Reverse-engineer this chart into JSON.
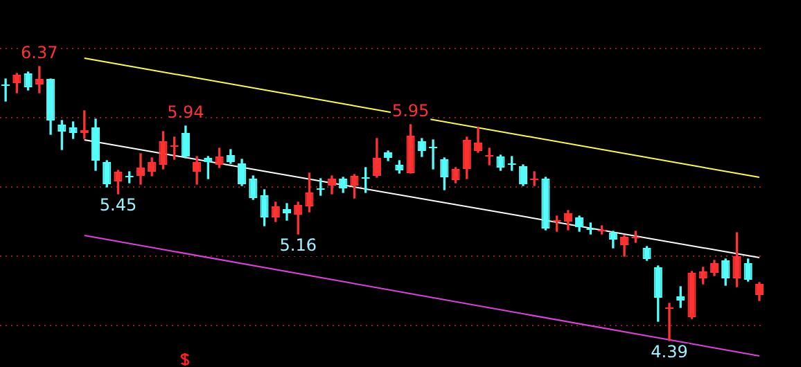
{
  "chart_data": {
    "type": "candlestick",
    "categories": [
      null,
      null,
      null,
      null,
      null,
      null,
      null,
      null,
      null,
      null,
      null,
      null,
      null,
      null,
      null,
      null,
      null,
      null,
      null,
      null,
      null,
      null,
      null,
      null,
      null,
      null,
      null,
      null,
      null,
      null,
      null,
      null,
      null,
      null,
      null,
      null,
      null,
      null,
      null,
      null,
      null,
      null,
      null,
      null,
      null,
      null,
      null,
      null,
      null,
      null,
      null,
      null,
      null,
      null,
      null,
      null,
      null,
      null,
      null,
      null,
      null,
      null,
      null,
      null,
      null,
      null,
      null,
      null
    ],
    "ohlc": [
      [
        6.24,
        6.28,
        6.12,
        6.23
      ],
      [
        6.25,
        6.32,
        6.18,
        6.31
      ],
      [
        6.32,
        6.33,
        6.2,
        6.22
      ],
      [
        6.24,
        6.37,
        6.18,
        6.28
      ],
      [
        6.28,
        6.28,
        5.88,
        5.98
      ],
      [
        5.95,
        5.98,
        5.77,
        5.9
      ],
      [
        5.93,
        5.97,
        5.85,
        5.89
      ],
      [
        5.89,
        6.05,
        5.85,
        5.91
      ],
      [
        5.93,
        5.99,
        5.62,
        5.69
      ],
      [
        5.68,
        5.69,
        5.5,
        5.52
      ],
      [
        5.54,
        5.62,
        5.45,
        5.61
      ],
      [
        5.58,
        5.61,
        5.53,
        5.57
      ],
      [
        5.58,
        5.74,
        5.52,
        5.64
      ],
      [
        5.61,
        5.71,
        5.58,
        5.68
      ],
      [
        5.66,
        5.9,
        5.63,
        5.83
      ],
      [
        5.79,
        5.86,
        5.7,
        5.8
      ],
      [
        5.89,
        5.94,
        5.71,
        5.72
      ],
      [
        5.61,
        5.72,
        5.52,
        5.68
      ],
      [
        5.71,
        5.72,
        5.56,
        5.68
      ],
      [
        5.66,
        5.78,
        5.64,
        5.72
      ],
      [
        5.73,
        5.77,
        5.67,
        5.68
      ],
      [
        5.67,
        5.7,
        5.51,
        5.52
      ],
      [
        5.56,
        5.58,
        5.41,
        5.42
      ],
      [
        5.44,
        5.48,
        5.22,
        5.28
      ],
      [
        5.28,
        5.39,
        5.25,
        5.36
      ],
      [
        5.34,
        5.38,
        5.26,
        5.31
      ],
      [
        5.3,
        5.39,
        5.16,
        5.37
      ],
      [
        5.36,
        5.6,
        5.32,
        5.46
      ],
      [
        5.49,
        5.56,
        5.44,
        5.48
      ],
      [
        5.51,
        5.58,
        5.45,
        5.56
      ],
      [
        5.56,
        5.57,
        5.46,
        5.49
      ],
      [
        5.51,
        5.59,
        5.42,
        5.58
      ],
      [
        5.57,
        5.64,
        5.46,
        5.56
      ],
      [
        5.58,
        5.85,
        5.57,
        5.71
      ],
      [
        5.75,
        5.76,
        5.69,
        5.71
      ],
      [
        5.66,
        5.69,
        5.6,
        5.62
      ],
      [
        5.6,
        5.95,
        5.6,
        5.87
      ],
      [
        5.83,
        5.85,
        5.72,
        5.76
      ],
      [
        5.79,
        5.84,
        5.63,
        5.78
      ],
      [
        5.7,
        5.71,
        5.48,
        5.57
      ],
      [
        5.55,
        5.64,
        5.53,
        5.63
      ],
      [
        5.63,
        5.86,
        5.56,
        5.84
      ],
      [
        5.76,
        5.93,
        5.75,
        5.82
      ],
      [
        5.72,
        5.78,
        5.66,
        5.73
      ],
      [
        5.72,
        5.73,
        5.62,
        5.64
      ],
      [
        5.67,
        5.72,
        5.62,
        5.66
      ],
      [
        5.65,
        5.66,
        5.51,
        5.52
      ],
      [
        5.55,
        5.61,
        5.51,
        5.56
      ],
      [
        5.56,
        5.57,
        5.19,
        5.2
      ],
      [
        5.25,
        5.29,
        5.18,
        5.26
      ],
      [
        5.25,
        5.33,
        5.19,
        5.31
      ],
      [
        5.28,
        5.29,
        5.18,
        5.21
      ],
      [
        5.2,
        5.24,
        5.16,
        5.19
      ],
      [
        5.18,
        5.22,
        5.16,
        5.19
      ],
      [
        5.17,
        5.18,
        5.06,
        5.12
      ],
      [
        5.08,
        5.15,
        5.0,
        5.14
      ],
      [
        5.13,
        5.18,
        5.1,
        5.14
      ],
      [
        5.06,
        5.07,
        4.97,
        4.98
      ],
      [
        4.92,
        4.93,
        4.53,
        4.7
      ],
      [
        4.62,
        4.66,
        4.39,
        4.63
      ],
      [
        4.71,
        4.78,
        4.63,
        4.68
      ],
      [
        4.56,
        4.89,
        4.55,
        4.88
      ],
      [
        4.84,
        4.92,
        4.8,
        4.89
      ],
      [
        4.88,
        4.97,
        4.86,
        4.95
      ],
      [
        4.97,
        4.98,
        4.79,
        4.84
      ],
      [
        4.84,
        5.17,
        4.78,
        5.0
      ],
      [
        4.95,
        4.98,
        4.82,
        4.83
      ],
      [
        4.72,
        4.81,
        4.68,
        4.8
      ]
    ],
    "colors": [
      "#54fcfc",
      "#ff3232",
      "#54fcfc",
      "#ff3232",
      "#54fcfc",
      "#54fcfc",
      "#54fcfc",
      "#ff3232",
      "#54fcfc",
      "#54fcfc",
      "#ff3232",
      "#54fcfc",
      "#ff3232",
      "#ff3232",
      "#ff3232",
      "#ff3232",
      "#54fcfc",
      "#ff3232",
      "#54fcfc",
      "#ff3232",
      "#54fcfc",
      "#54fcfc",
      "#54fcfc",
      "#54fcfc",
      "#ff3232",
      "#54fcfc",
      "#ff3232",
      "#ff3232",
      "#54fcfc",
      "#ff3232",
      "#54fcfc",
      "#ff3232",
      "#54fcfc",
      "#ff3232",
      "#54fcfc",
      "#54fcfc",
      "#ff3232",
      "#54fcfc",
      "#54fcfc",
      "#54fcfc",
      "#ff3232",
      "#ff3232",
      "#ff3232",
      "#ff3232",
      "#54fcfc",
      "#54fcfc",
      "#54fcfc",
      "#ff3232",
      "#54fcfc",
      "#ff3232",
      "#ff3232",
      "#54fcfc",
      "#54fcfc",
      "#ff3232",
      "#54fcfc",
      "#ff3232",
      "#ff3232",
      "#54fcfc",
      "#54fcfc",
      "#ff3232",
      "#54fcfc",
      "#ff3232",
      "#ff3232",
      "#ff3232",
      "#54fcfc",
      "#ff3232",
      "#54fcfc",
      "#ff3232"
    ],
    "series": [
      {
        "type": "line",
        "color": "#ffff40",
        "values": [
          null,
          null,
          null,
          null,
          null,
          null,
          null,
          6.43,
          null,
          null,
          null,
          null,
          null,
          null,
          null,
          null,
          null,
          null,
          null,
          null,
          null,
          null,
          null,
          null,
          null,
          null,
          null,
          null,
          null,
          null,
          null,
          null,
          null,
          null,
          null,
          null,
          null,
          null,
          null,
          null,
          null,
          null,
          null,
          null,
          null,
          null,
          null,
          null,
          null,
          null,
          null,
          null,
          null,
          null,
          null,
          null,
          null,
          null,
          null,
          null,
          null,
          null,
          null,
          null,
          null,
          null,
          null,
          5.57
        ]
      },
      {
        "type": "line",
        "color": "#ffffff",
        "values": [
          null,
          null,
          null,
          null,
          null,
          null,
          null,
          5.84,
          null,
          null,
          null,
          null,
          null,
          null,
          null,
          null,
          null,
          null,
          null,
          null,
          null,
          null,
          null,
          null,
          null,
          null,
          null,
          null,
          null,
          null,
          null,
          null,
          null,
          null,
          null,
          null,
          null,
          null,
          null,
          null,
          null,
          null,
          null,
          null,
          null,
          null,
          null,
          null,
          null,
          null,
          null,
          null,
          null,
          null,
          null,
          null,
          null,
          null,
          null,
          null,
          null,
          null,
          null,
          null,
          null,
          null,
          null,
          4.99
        ]
      },
      {
        "type": "line",
        "color": "#e040e0",
        "values": [
          null,
          null,
          null,
          null,
          null,
          null,
          null,
          5.15,
          null,
          null,
          null,
          null,
          null,
          null,
          null,
          null,
          null,
          null,
          null,
          null,
          null,
          null,
          null,
          null,
          null,
          null,
          null,
          null,
          null,
          null,
          null,
          null,
          null,
          null,
          null,
          null,
          null,
          null,
          null,
          null,
          null,
          null,
          null,
          null,
          null,
          null,
          null,
          null,
          null,
          null,
          null,
          null,
          null,
          null,
          null,
          null,
          null,
          null,
          null,
          null,
          null,
          null,
          null,
          null,
          null,
          null,
          null,
          4.28
        ]
      }
    ],
    "ylim": [
      4.2,
      6.85
    ],
    "yticks": [
      {
        "value": 6.5,
        "label": null
      },
      {
        "value": 6.0,
        "label": null
      },
      {
        "value": 5.5,
        "label": null
      },
      {
        "value": 5.0,
        "label": null
      },
      {
        "value": 4.5,
        "label": null
      }
    ],
    "grid": "y",
    "tick_labels": false,
    "annotations": [
      {
        "text": "6.37",
        "y": 6.37
      },
      {
        "text": "5.94",
        "y": 5.94
      },
      {
        "text": "5.95",
        "y": 5.95
      },
      {
        "text": "5.45",
        "y": 5.45
      },
      {
        "text": "5.16",
        "y": 5.16
      },
      {
        "text": "4.39",
        "y": 4.39
      }
    ]
  }
}
